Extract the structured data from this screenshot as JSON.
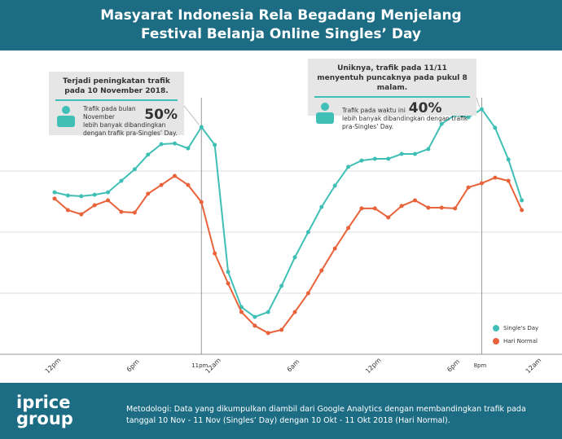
{
  "header": {
    "title_lines": [
      "Masyarat Indonesia Rela Begadang Menjelang",
      "Festival Belanja Online Singles’ Day"
    ]
  },
  "chart_data": {
    "type": "line",
    "x": [
      0,
      1,
      2,
      3,
      4,
      5,
      6,
      7,
      8,
      9,
      10,
      11,
      12,
      13,
      14,
      15,
      16,
      17,
      18,
      19,
      20,
      21,
      22,
      23,
      24,
      25,
      26,
      27,
      28,
      29,
      30,
      31,
      32,
      33,
      34,
      35
    ],
    "xlim": [
      0,
      36
    ],
    "xticks": [
      {
        "value": 0,
        "label": "12pm"
      },
      {
        "value": 6,
        "label": "6pm"
      },
      {
        "value": 11,
        "label": "11pm"
      },
      {
        "value": 12,
        "label": "12am"
      },
      {
        "value": 18,
        "label": "6am"
      },
      {
        "value": 24,
        "label": "12pm"
      },
      {
        "value": 30,
        "label": "6pm"
      },
      {
        "value": 32,
        "label": "8pm"
      },
      {
        "value": 36,
        "label": "12am"
      }
    ],
    "ylim": [
      0,
      105
    ],
    "yticks": [
      0,
      25,
      50,
      75
    ],
    "grid": true,
    "series": [
      {
        "name": "Single's Day",
        "color": "#3fbfb6",
        "values": [
          66.3,
          65,
          64.7,
          65.3,
          66.3,
          71,
          75.7,
          81.7,
          86,
          86.3,
          84.3,
          93,
          85.7,
          33.7,
          19.3,
          15.3,
          17.3,
          28,
          39.7,
          50,
          60.3,
          69,
          76.7,
          79.3,
          80,
          80,
          82,
          82,
          84,
          94.3,
          98,
          97,
          100.3,
          92.7,
          79.7,
          63
        ]
      },
      {
        "name": "Hari Normal",
        "color": "#e8623a",
        "values": [
          63.7,
          59,
          57.3,
          61,
          63,
          58.3,
          58,
          65.7,
          69.3,
          73,
          69.3,
          62.3,
          41.3,
          29,
          17.3,
          11.7,
          8.7,
          10,
          17.3,
          25,
          34.3,
          43.3,
          51.7,
          59.7,
          59.7,
          56,
          60.7,
          63,
          60,
          60,
          59.7,
          68.3,
          70,
          72.3,
          71,
          59
        ]
      }
    ],
    "annotations": [
      {
        "title": "Terjadi peningkatan trafik pada 10 November 2018.",
        "lead": "Trafik pada bulan November",
        "figure": "50%",
        "body": "lebih banyak dibandingkan dengan trafik pra-Singles’ Day."
      },
      {
        "title": "Uniknya, trafik pada 11/11 menyentuh puncaknya pada pukul 8 malam.",
        "lead": "Trafik pada waktu ini",
        "figure": "40%",
        "body": "lebih banyak dibandingkan dengan trafik pra-Singles’ Day."
      }
    ]
  },
  "footer": {
    "logo": [
      "iprice",
      "group"
    ],
    "note": "Metodologi: Data yang dikumpulkan diambil dari Google Analytics dengan membandingkan trafik pada tanggal 10 Nov - 11 Nov (Singles’ Day) dengan 10 Okt - 11 Okt 2018 (Hari Normal)."
  }
}
